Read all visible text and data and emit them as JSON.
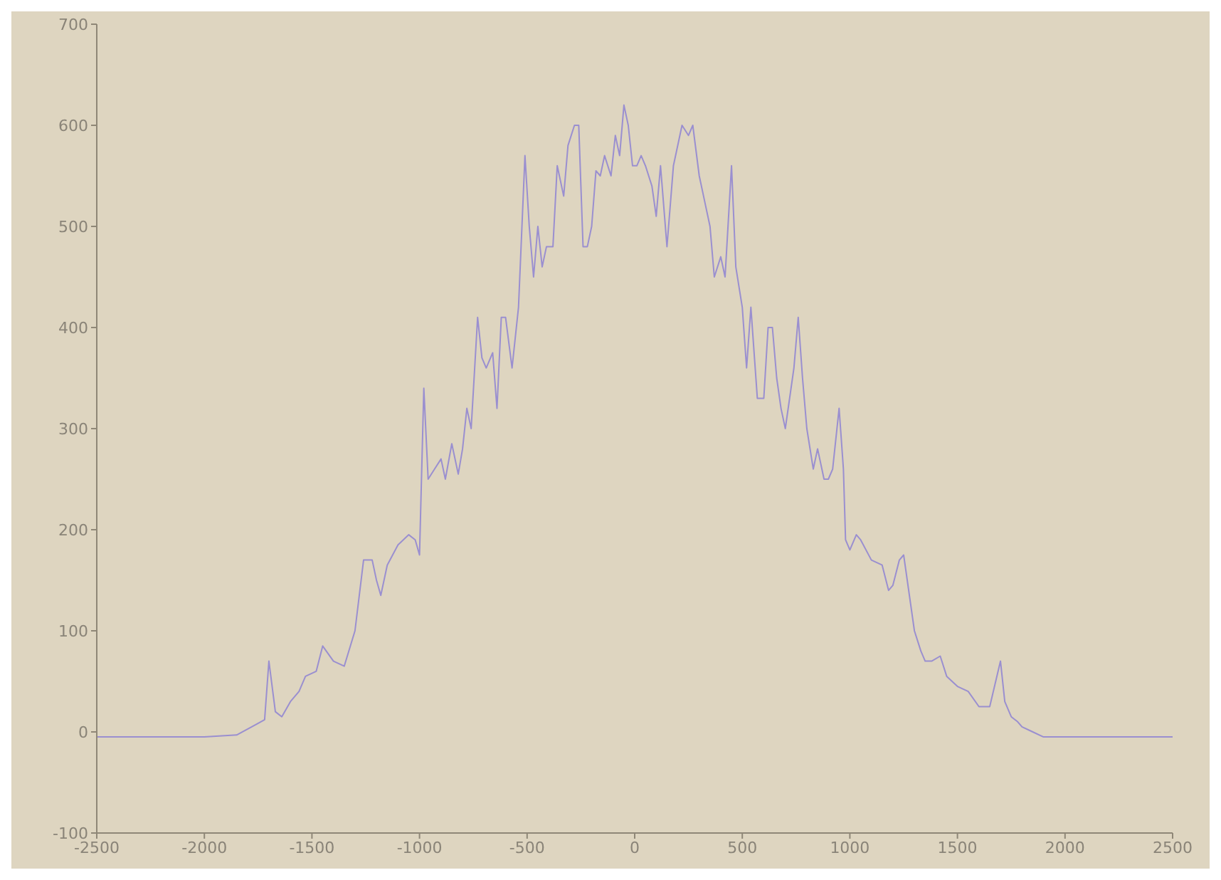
{
  "chart_data": {
    "type": "line",
    "x": [
      -2500,
      -2000,
      -1850,
      -1780,
      -1720,
      -1700,
      -1670,
      -1640,
      -1600,
      -1560,
      -1530,
      -1480,
      -1450,
      -1400,
      -1350,
      -1300,
      -1260,
      -1220,
      -1200,
      -1180,
      -1150,
      -1100,
      -1050,
      -1020,
      -1000,
      -980,
      -960,
      -930,
      -900,
      -880,
      -850,
      -820,
      -800,
      -780,
      -760,
      -730,
      -710,
      -690,
      -660,
      -640,
      -620,
      -600,
      -570,
      -540,
      -510,
      -490,
      -470,
      -450,
      -430,
      -410,
      -380,
      -360,
      -330,
      -310,
      -280,
      -260,
      -240,
      -220,
      -200,
      -180,
      -160,
      -140,
      -110,
      -90,
      -70,
      -50,
      -30,
      -10,
      10,
      30,
      50,
      80,
      100,
      120,
      150,
      180,
      220,
      250,
      270,
      300,
      330,
      350,
      370,
      400,
      420,
      450,
      470,
      500,
      520,
      540,
      570,
      600,
      620,
      640,
      660,
      680,
      700,
      740,
      760,
      780,
      800,
      830,
      850,
      880,
      900,
      920,
      950,
      970,
      980,
      1000,
      1030,
      1050,
      1100,
      1150,
      1180,
      1200,
      1230,
      1250,
      1300,
      1330,
      1350,
      1380,
      1420,
      1450,
      1500,
      1550,
      1600,
      1650,
      1700,
      1720,
      1750,
      1780,
      1800,
      1850,
      1900,
      2500
    ],
    "series": [
      {
        "color": "#9a8fd0",
        "values": [
          -5,
          -5,
          -3,
          5,
          12,
          70,
          20,
          15,
          30,
          40,
          55,
          60,
          85,
          70,
          65,
          100,
          170,
          170,
          150,
          135,
          165,
          185,
          195,
          190,
          175,
          340,
          250,
          260,
          270,
          250,
          285,
          255,
          280,
          320,
          300,
          410,
          370,
          360,
          375,
          320,
          410,
          410,
          360,
          420,
          570,
          500,
          450,
          500,
          460,
          480,
          480,
          560,
          530,
          580,
          600,
          600,
          480,
          480,
          500,
          555,
          550,
          570,
          550,
          590,
          570,
          620,
          600,
          560,
          560,
          570,
          560,
          540,
          510,
          560,
          480,
          560,
          600,
          590,
          600,
          550,
          520,
          500,
          450,
          470,
          450,
          560,
          460,
          420,
          360,
          420,
          330,
          330,
          400,
          400,
          350,
          320,
          300,
          360,
          410,
          350,
          300,
          260,
          280,
          250,
          250,
          260,
          320,
          260,
          190,
          180,
          195,
          190,
          170,
          165,
          140,
          145,
          170,
          175,
          100,
          80,
          70,
          70,
          75,
          55,
          45,
          40,
          25,
          25,
          70,
          30,
          15,
          10,
          5,
          0,
          -5,
          -5
        ]
      }
    ],
    "xlim": [
      -2500,
      2500
    ],
    "xticks": [
      -2500,
      -2000,
      -1500,
      -1000,
      -500,
      0,
      500,
      1000,
      1500,
      2000,
      2500
    ],
    "ylim": [
      -100,
      700
    ],
    "yticks": [
      -100,
      0,
      100,
      200,
      300,
      400,
      500,
      600,
      700
    ],
    "marker": "none",
    "line_style": "solid"
  }
}
